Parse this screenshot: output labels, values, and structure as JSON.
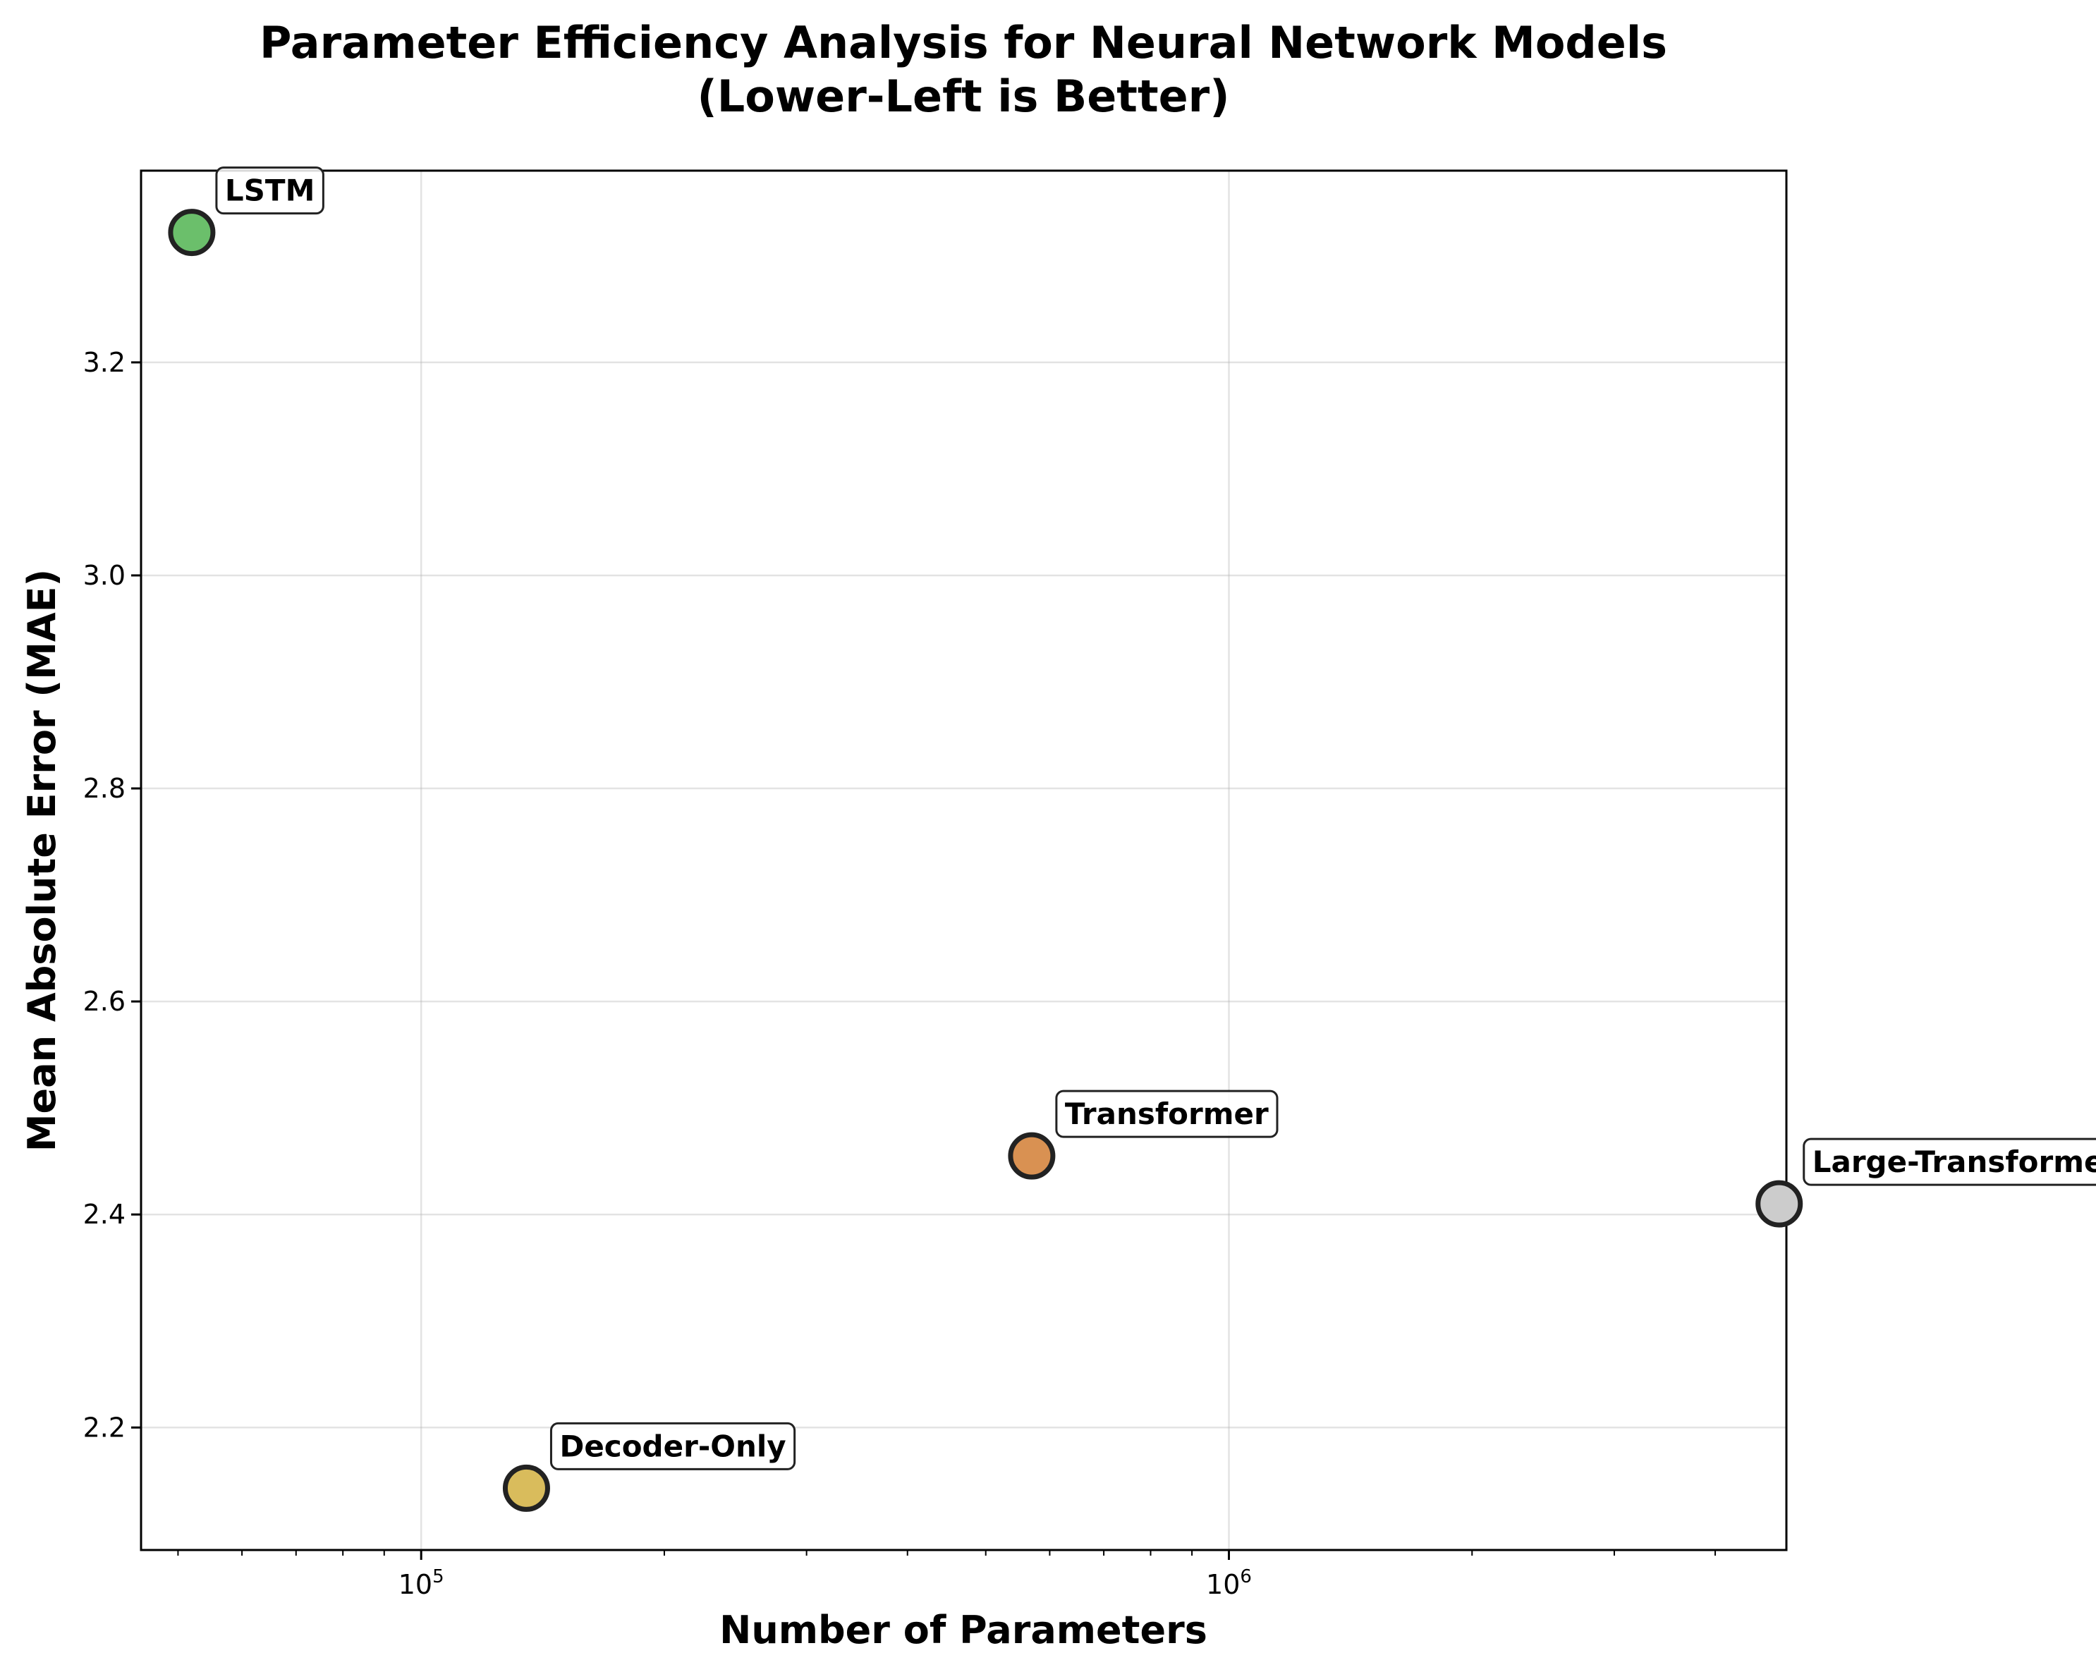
{
  "chart_data": {
    "type": "scatter",
    "title": "Parameter Efficiency Analysis for Neural Network Models",
    "subtitle": "(Lower-Left is Better)",
    "xlabel": "Number of Parameters",
    "ylabel": "Mean Absolute Error (MAE)",
    "xscale": "log",
    "xlim": [
      45000,
      4900000
    ],
    "ylim": [
      2.085,
      3.38
    ],
    "grid": true,
    "x_ticks": [
      {
        "value": 100000,
        "base": "10",
        "exp": "5"
      },
      {
        "value": 1000000,
        "base": "10",
        "exp": "6"
      }
    ],
    "y_ticks": [
      2.2,
      2.4,
      2.6,
      2.8,
      3.0,
      3.2
    ],
    "points": [
      {
        "name": "LSTM",
        "x": 52000,
        "y": 3.322,
        "color": "#6bbf6b"
      },
      {
        "name": "Decoder-Only",
        "x": 135000,
        "y": 2.143,
        "color": "#d9bc5c"
      },
      {
        "name": "Transformer",
        "x": 570000,
        "y": 2.455,
        "color": "#d99152"
      },
      {
        "name": "Large-Transformer",
        "x": 4800000,
        "y": 2.41,
        "color": "#cccccc"
      }
    ]
  }
}
